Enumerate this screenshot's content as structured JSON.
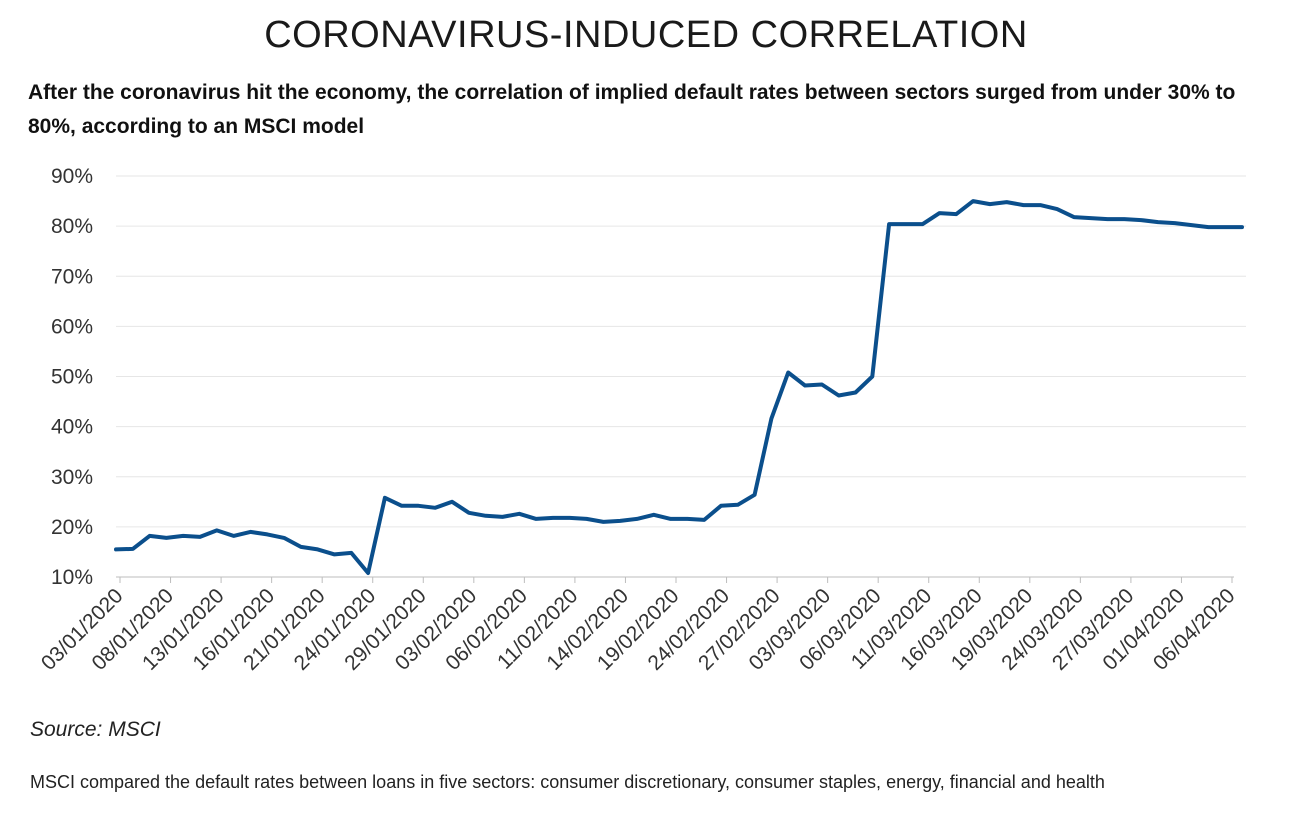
{
  "title": "CORONAVIRUS-INDUCED CORRELATION",
  "subtitle": "After the coronavirus hit the economy, the correlation of implied default rates between sectors surged from under 30% to 80%, according to an MSCI model",
  "source": "Source: MSCI",
  "note": "MSCI compared the default rates between loans in five sectors: consumer discretionary, consumer staples, energy, financial and health",
  "colors": {
    "line": "#0b4f8c",
    "grid": "#e6e6e6",
    "axis": "#bdbdbd"
  },
  "chart_data": {
    "type": "line",
    "title": "CORONAVIRUS-INDUCED CORRELATION",
    "xlabel": "",
    "ylabel": "",
    "ylim": [
      10,
      90
    ],
    "yticks": [
      "10%",
      "20%",
      "30%",
      "40%",
      "50%",
      "60%",
      "70%",
      "80%",
      "90%"
    ],
    "grid": true,
    "legend": "none",
    "x_tick_labels": [
      "03/01/2020",
      "08/01/2020",
      "13/01/2020",
      "16/01/2020",
      "21/01/2020",
      "24/01/2020",
      "29/01/2020",
      "03/02/2020",
      "06/02/2020",
      "11/02/2020",
      "14/02/2020",
      "19/02/2020",
      "24/02/2020",
      "27/02/2020",
      "03/03/2020",
      "06/03/2020",
      "11/03/2020",
      "16/03/2020",
      "19/03/2020",
      "24/03/2020",
      "27/03/2020",
      "01/04/2020",
      "06/04/2020"
    ],
    "series": [
      {
        "values": [
          15.5,
          15.6,
          18.2,
          17.8,
          18.2,
          18.0,
          19.3,
          18.2,
          19.0,
          18.5,
          17.8,
          16.0,
          15.5,
          14.5,
          14.8,
          10.8,
          25.8,
          24.2,
          24.2,
          23.8,
          25.0,
          22.8,
          22.2,
          22.0,
          22.6,
          21.6,
          21.8,
          21.8,
          21.6,
          21.0,
          21.2,
          21.6,
          22.4,
          21.6,
          21.6,
          21.4,
          24.2,
          24.4,
          26.4,
          41.6,
          50.8,
          48.2,
          48.4,
          46.2,
          46.8,
          50.0,
          80.4,
          80.4,
          80.4,
          82.6,
          82.4,
          85.0,
          84.4,
          84.8,
          84.2,
          84.2,
          83.4,
          81.8,
          81.6,
          81.4,
          81.4,
          81.2,
          80.8,
          80.6,
          80.2,
          79.8,
          79.8,
          79.8
        ]
      }
    ]
  }
}
